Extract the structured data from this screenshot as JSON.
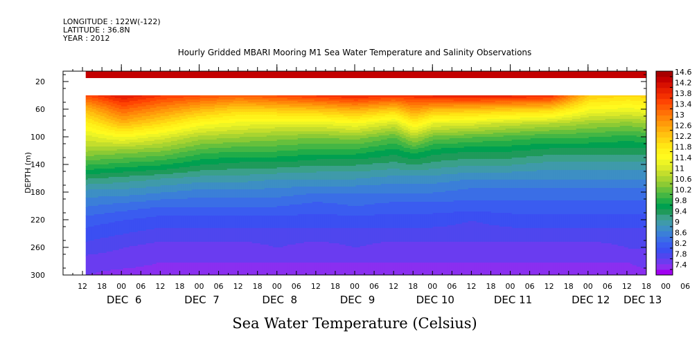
{
  "header": {
    "longitude": "LONGITUDE : 122W(-122)",
    "latitude": "LATITUDE : 36.8N",
    "year": "YEAR : 2012"
  },
  "chart_data": {
    "type": "heatmap",
    "title": "Hourly Gridded MBARI Mooring M1 Sea Water Temperature and Salinity Observations",
    "xlabel": "",
    "ylabel": "DEPTH (m)",
    "colorbar_label": "Sea Water Temperature (Celsius)",
    "y_range": [
      5,
      300
    ],
    "y_inverted": true,
    "y_ticks": [
      20,
      60,
      100,
      140,
      180,
      220,
      260,
      300
    ],
    "x_start_hour": 6,
    "x_end_hour": 186,
    "x_hour_ticks": [
      "12",
      "18",
      "00",
      "06",
      "12",
      "18",
      "00",
      "06",
      "12",
      "18",
      "00",
      "06",
      "12",
      "18",
      "00",
      "06",
      "12",
      "18",
      "00",
      "06",
      "12",
      "18",
      "00",
      "06",
      "12",
      "18",
      "00",
      "06",
      "12",
      "18",
      "00",
      "06"
    ],
    "x_day_labels": [
      {
        "label": "DEC  6",
        "hour": 24
      },
      {
        "label": "DEC  7",
        "hour": 48
      },
      {
        "label": "DEC  8",
        "hour": 72
      },
      {
        "label": "DEC  9",
        "hour": 96
      },
      {
        "label": "DEC 10",
        "hour": 120
      },
      {
        "label": "DEC 11",
        "hour": 144
      },
      {
        "label": "DEC 12",
        "hour": 168
      },
      {
        "label": "DEC 13",
        "hour": 184
      }
    ],
    "data_start_hour": 13,
    "surface_band_depth": [
      5,
      15
    ],
    "surface_band_temp": 14.5,
    "gap_depth": [
      15,
      40
    ],
    "depth_levels": [
      40,
      60,
      80,
      100,
      120,
      140,
      160,
      180,
      200,
      220,
      240,
      260,
      280,
      300
    ],
    "columns": [
      {
        "hour": 13,
        "temps": [
          13.6,
          12.6,
          11.9,
          11.3,
          10.8,
          10.2,
          9.6,
          9.1,
          8.8,
          8.5,
          8.3,
          8.1,
          7.9,
          7.8
        ]
      },
      {
        "hour": 24,
        "temps": [
          14.2,
          13.4,
          12.6,
          11.6,
          10.7,
          10.1,
          9.5,
          9.1,
          8.7,
          8.4,
          8.2,
          8.0,
          7.9,
          7.7
        ]
      },
      {
        "hour": 36,
        "temps": [
          13.8,
          13.0,
          12.2,
          11.3,
          10.6,
          10.0,
          9.4,
          9.0,
          8.6,
          8.3,
          8.1,
          7.9,
          7.8,
          7.7
        ]
      },
      {
        "hour": 48,
        "temps": [
          13.6,
          12.6,
          11.7,
          10.9,
          10.3,
          9.8,
          9.3,
          8.9,
          8.6,
          8.3,
          8.1,
          7.9,
          7.8,
          7.6
        ]
      },
      {
        "hour": 60,
        "temps": [
          13.4,
          12.3,
          11.5,
          10.8,
          10.2,
          9.7,
          9.3,
          8.9,
          8.6,
          8.3,
          8.1,
          7.9,
          7.8,
          7.6
        ]
      },
      {
        "hour": 72,
        "temps": [
          13.6,
          12.4,
          11.4,
          10.7,
          10.2,
          9.7,
          9.2,
          8.9,
          8.6,
          8.3,
          8.1,
          8.0,
          7.8,
          7.7
        ]
      },
      {
        "hour": 84,
        "temps": [
          13.8,
          12.5,
          11.4,
          10.6,
          10.1,
          9.6,
          9.2,
          8.8,
          8.5,
          8.3,
          8.1,
          7.9,
          7.8,
          7.6
        ]
      },
      {
        "hour": 96,
        "temps": [
          14.0,
          12.7,
          11.6,
          10.7,
          10.1,
          9.6,
          9.2,
          8.8,
          8.6,
          8.3,
          8.1,
          8.0,
          7.8,
          7.7
        ]
      },
      {
        "hour": 108,
        "temps": [
          13.8,
          12.4,
          11.2,
          10.4,
          9.9,
          9.5,
          9.1,
          8.8,
          8.5,
          8.3,
          8.1,
          7.9,
          7.8,
          7.7
        ]
      },
      {
        "hour": 114,
        "temps": [
          13.9,
          12.9,
          11.9,
          10.9,
          10.1,
          9.6,
          9.1,
          8.8,
          8.5,
          8.3,
          8.1,
          7.9,
          7.8,
          7.7
        ]
      },
      {
        "hour": 120,
        "temps": [
          14.0,
          12.6,
          11.4,
          10.5,
          9.9,
          9.5,
          9.1,
          8.8,
          8.5,
          8.3,
          8.1,
          7.9,
          7.8,
          7.7
        ]
      },
      {
        "hour": 132,
        "temps": [
          14.1,
          12.5,
          11.3,
          10.4,
          9.8,
          9.4,
          9.0,
          8.7,
          8.5,
          8.2,
          8.1,
          7.9,
          7.8,
          7.6
        ]
      },
      {
        "hour": 144,
        "temps": [
          14.0,
          12.4,
          11.1,
          10.3,
          9.8,
          9.4,
          9.0,
          8.7,
          8.5,
          8.3,
          8.1,
          7.9,
          7.8,
          7.7
        ]
      },
      {
        "hour": 156,
        "temps": [
          13.9,
          12.3,
          11.0,
          10.2,
          9.7,
          9.3,
          9.0,
          8.7,
          8.5,
          8.3,
          8.1,
          7.9,
          7.8,
          7.6
        ]
      },
      {
        "hour": 168,
        "temps": [
          12.4,
          11.6,
          10.8,
          10.2,
          9.7,
          9.3,
          9.0,
          8.7,
          8.5,
          8.3,
          8.1,
          7.9,
          7.8,
          7.7
        ]
      },
      {
        "hour": 180,
        "temps": [
          12.2,
          11.5,
          10.7,
          10.1,
          9.7,
          9.3,
          9.0,
          8.7,
          8.5,
          8.3,
          8.1,
          8.0,
          7.8,
          7.7
        ]
      },
      {
        "hour": 186,
        "temps": [
          12.3,
          11.6,
          10.8,
          10.2,
          9.7,
          9.3,
          9.0,
          8.7,
          8.5,
          8.3,
          8.1,
          8.0,
          7.9,
          7.7
        ]
      }
    ],
    "colorbar": {
      "labels": [
        "14.6",
        "14.2",
        "13.8",
        "13.4",
        "13",
        "12.6",
        "12.2",
        "11.8",
        "11.4",
        "11",
        "10.6",
        "10.2",
        "9.8",
        "9.4",
        "9",
        "8.6",
        "8.2",
        "7.8",
        "7.4"
      ],
      "boundaries": [
        7.4,
        7.6,
        7.8,
        8.0,
        8.2,
        8.4,
        8.6,
        8.8,
        9.0,
        9.2,
        9.4,
        9.6,
        9.8,
        10.0,
        10.2,
        10.4,
        10.6,
        10.8,
        11.0,
        11.2,
        11.4,
        11.6,
        11.8,
        12.0,
        12.2,
        12.4,
        12.6,
        12.8,
        13.0,
        13.2,
        13.4,
        13.6,
        13.8,
        14.0,
        14.2,
        14.4,
        14.6,
        14.8
      ],
      "colors": [
        "#a000f0",
        "#8a2ff0",
        "#6a3cf0",
        "#4f46ee",
        "#3b4ff2",
        "#3a5cf0",
        "#3a6ee6",
        "#3b7fd8",
        "#3d8fc4",
        "#3f9aaa",
        "#3aa08a",
        "#1f9a5a",
        "#00a050",
        "#20ac48",
        "#44b644",
        "#66c03c",
        "#8cca34",
        "#a8d430",
        "#c4de2c",
        "#dcea28",
        "#eef524",
        "#fffa1e",
        "#fff21a",
        "#ffe614",
        "#ffd412",
        "#ffc210",
        "#ffae0c",
        "#ff9a0a",
        "#ff8608",
        "#ff7006",
        "#ff5a04",
        "#ff4402",
        "#f43000",
        "#e82000",
        "#d81000",
        "#c40000",
        "#a80000"
      ]
    }
  }
}
